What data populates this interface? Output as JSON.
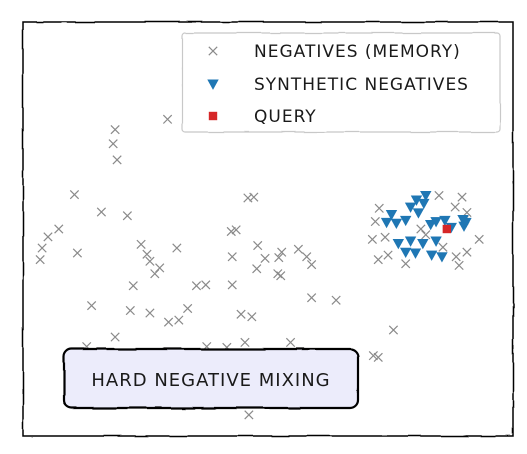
{
  "chart_data": {
    "type": "scatter",
    "title": "",
    "xlabel": "",
    "ylabel": "",
    "xlim": [
      0,
      100
    ],
    "ylim": [
      0,
      100
    ],
    "grid": false,
    "legend_position": "top-right",
    "series": [
      {
        "name": "NEGATIVES (MEMORY)",
        "marker": "x",
        "color": "#8a8a8a",
        "points": [
          [
            29.5,
            76.5
          ],
          [
            18.8,
            74.0
          ],
          [
            18.4,
            70.6
          ],
          [
            19.2,
            66.7
          ],
          [
            10.5,
            58.3
          ],
          [
            16.0,
            54.1
          ],
          [
            21.3,
            53.2
          ],
          [
            7.3,
            50.0
          ],
          [
            5.1,
            48.1
          ],
          [
            3.9,
            45.4
          ],
          [
            3.5,
            42.6
          ],
          [
            11.1,
            44.2
          ],
          [
            24.1,
            46.3
          ],
          [
            25.3,
            43.9
          ],
          [
            25.9,
            42.2
          ],
          [
            31.4,
            45.4
          ],
          [
            27.9,
            40.6
          ],
          [
            45.9,
            57.5
          ],
          [
            47.1,
            57.7
          ],
          [
            42.5,
            49.4
          ],
          [
            43.5,
            49.8
          ],
          [
            47.9,
            46.0
          ],
          [
            49.4,
            42.9
          ],
          [
            52.2,
            43.1
          ],
          [
            52.8,
            44.4
          ],
          [
            56.2,
            45.1
          ],
          [
            57.9,
            43.3
          ],
          [
            58.9,
            41.4
          ],
          [
            42.7,
            43.3
          ],
          [
            26.9,
            39.2
          ],
          [
            35.4,
            36.3
          ],
          [
            37.3,
            36.5
          ],
          [
            42.7,
            36.5
          ],
          [
            47.7,
            40.4
          ],
          [
            52.0,
            39.2
          ],
          [
            52.6,
            38.7
          ],
          [
            22.5,
            36.3
          ],
          [
            14.0,
            31.5
          ],
          [
            21.9,
            30.3
          ],
          [
            25.9,
            29.7
          ],
          [
            33.6,
            30.8
          ],
          [
            31.8,
            28.0
          ],
          [
            29.7,
            27.5
          ],
          [
            44.5,
            29.4
          ],
          [
            46.7,
            28.8
          ],
          [
            58.9,
            33.4
          ],
          [
            63.9,
            32.8
          ],
          [
            18.8,
            23.9
          ],
          [
            13.0,
            21.6
          ],
          [
            37.5,
            21.6
          ],
          [
            41.6,
            21.4
          ],
          [
            45.3,
            22.6
          ],
          [
            54.6,
            22.6
          ],
          [
            63.1,
            19.6
          ],
          [
            71.5,
            19.4
          ],
          [
            72.5,
            19.0
          ],
          [
            75.6,
            25.6
          ],
          [
            16.4,
            18.5
          ],
          [
            32.6,
            16.6
          ],
          [
            39.4,
            10.9
          ],
          [
            46.1,
            5.1
          ],
          [
            72.7,
            55.0
          ],
          [
            84.9,
            58.1
          ],
          [
            88.2,
            55.3
          ],
          [
            89.6,
            57.7
          ],
          [
            90.6,
            54.0
          ],
          [
            90.0,
            52.1
          ],
          [
            71.9,
            51.8
          ],
          [
            73.9,
            48.0
          ],
          [
            81.2,
            50.0
          ],
          [
            82.2,
            48.6
          ],
          [
            85.7,
            45.6
          ],
          [
            90.6,
            44.4
          ],
          [
            93.1,
            47.5
          ],
          [
            72.5,
            42.6
          ],
          [
            78.1,
            41.6
          ],
          [
            88.4,
            43.3
          ],
          [
            89.0,
            41.2
          ],
          [
            71.3,
            47.5
          ],
          [
            74.5,
            43.7
          ]
        ]
      },
      {
        "name": "SYNTHETIC NEGATIVES",
        "marker": "triangle-down",
        "color": "#1f77b4",
        "points": [
          [
            75.2,
            53.5
          ],
          [
            80.3,
            57.0
          ],
          [
            82.2,
            58.1
          ],
          [
            79.1,
            55.3
          ],
          [
            81.8,
            56.2
          ],
          [
            80.7,
            53.9
          ],
          [
            74.2,
            51.6
          ],
          [
            76.2,
            51.4
          ],
          [
            78.1,
            52.1
          ],
          [
            83.2,
            51.1
          ],
          [
            84.3,
            51.8
          ],
          [
            86.1,
            52.1
          ],
          [
            89.8,
            52.3
          ],
          [
            90.0,
            50.7
          ],
          [
            87.4,
            50.4
          ],
          [
            76.6,
            46.5
          ],
          [
            79.1,
            47.1
          ],
          [
            81.6,
            46.5
          ],
          [
            84.3,
            47.1
          ],
          [
            78.1,
            44.4
          ],
          [
            80.1,
            44.2
          ],
          [
            83.4,
            43.7
          ],
          [
            85.5,
            43.3
          ],
          [
            90.4,
            51.6
          ]
        ]
      },
      {
        "name": "QUERY",
        "marker": "square",
        "color": "#d62728",
        "points": [
          [
            86.5,
            50.0
          ]
        ]
      }
    ],
    "annotation": "HARD NEGATIVE MIXING"
  }
}
